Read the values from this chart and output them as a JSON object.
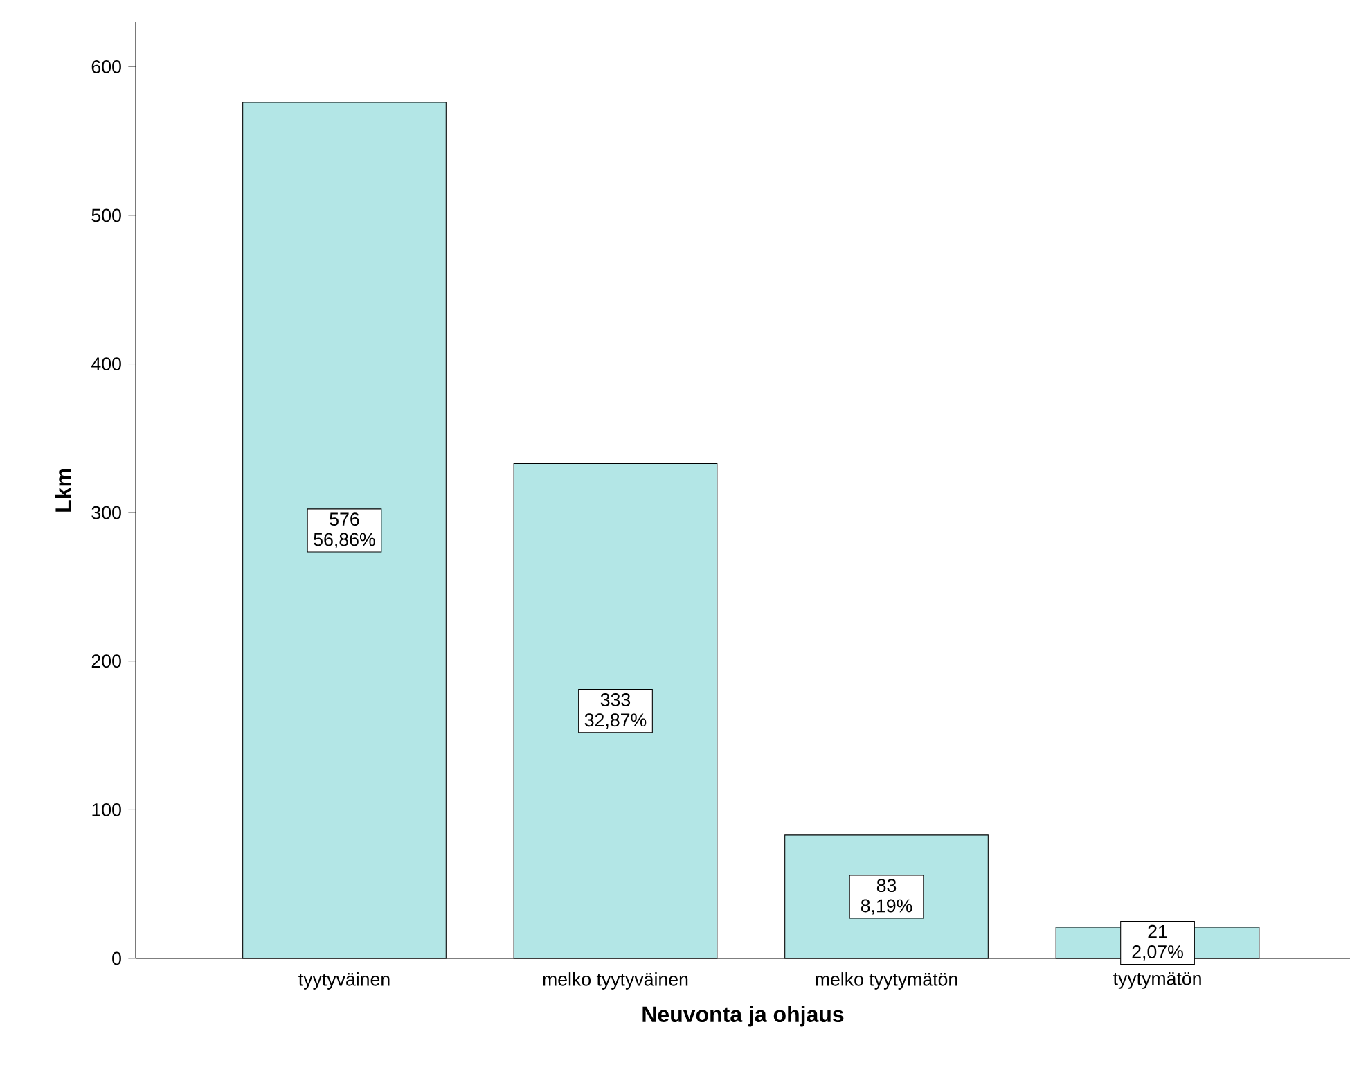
{
  "chart_data": {
    "type": "bar",
    "xlabel": "Neuvonta ja ohjaus",
    "ylabel": "Lkm",
    "categories": [
      "tyytyväinen",
      "melko tyytyväinen",
      "melko tyytymätön",
      "tyytymätön"
    ],
    "values": [
      576,
      333,
      83,
      21
    ],
    "value_labels": [
      "576 56,86%",
      "333 32,87%",
      "83 8,19%",
      "21 2,07%"
    ],
    "color": "#b3e6e6",
    "ylim": [
      0,
      630
    ],
    "yticks": [
      0,
      100,
      200,
      300,
      400,
      500,
      600
    ]
  }
}
